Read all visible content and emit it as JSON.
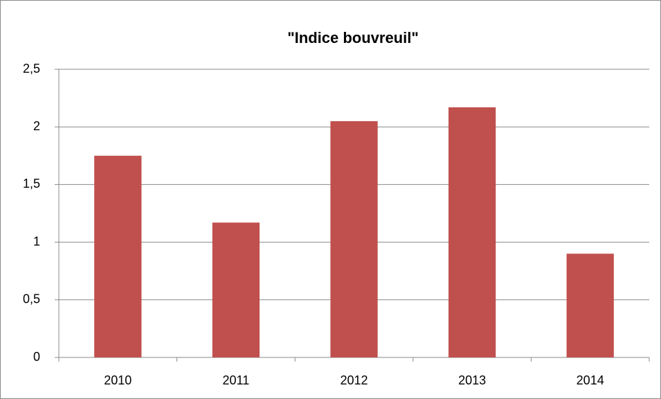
{
  "chart_data": {
    "type": "bar",
    "title": "\"Indice bouvreuil\"",
    "categories": [
      "2010",
      "2011",
      "2012",
      "2013",
      "2014"
    ],
    "values": [
      1.75,
      1.17,
      2.05,
      2.17,
      0.9
    ],
    "color": "#c0504d",
    "ylim": [
      0,
      2.5
    ],
    "yticks": [
      0,
      {
        "value": 0.5,
        "label": "0,5"
      },
      1,
      {
        "value": 1.5,
        "label": "1,5"
      },
      2,
      {
        "value": 2.5,
        "label": "2,5"
      }
    ],
    "grid": true
  }
}
